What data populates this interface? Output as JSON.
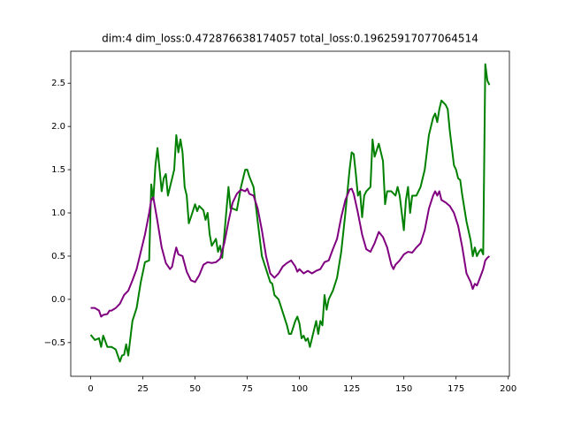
{
  "chart_data": {
    "type": "line",
    "title": "dim:4 dim_loss:0.472876638174057 total_loss:0.19625917077064514",
    "xlim": [
      -9.55,
      200.55
    ],
    "ylim": [
      -0.89,
      2.87
    ],
    "xticks": [
      0,
      25,
      50,
      75,
      100,
      125,
      150,
      175,
      200
    ],
    "yticks": [
      {
        "value": -0.5,
        "label": "−0.5"
      },
      {
        "value": 0,
        "label": "0.0"
      },
      0.5,
      {
        "value": 1,
        "label": "1.0"
      },
      1.5,
      {
        "value": 2,
        "label": "2.0"
      },
      2.5
    ],
    "series": [
      {
        "color": "#008000",
        "x": [
          0,
          2,
          4,
          5,
          6,
          8,
          10,
          12,
          14,
          15,
          16,
          17,
          18,
          20,
          22,
          24,
          26,
          28,
          29,
          30,
          31,
          32,
          34,
          35,
          36,
          37,
          38,
          40,
          41,
          42,
          43,
          44,
          45,
          46,
          47,
          48,
          50,
          51,
          52,
          54,
          55,
          56,
          57,
          58,
          60,
          61,
          62,
          63,
          64,
          66,
          67,
          68,
          70,
          72,
          74,
          75,
          76,
          78,
          80,
          82,
          84,
          86,
          87,
          88,
          90,
          92,
          94,
          95,
          96,
          98,
          99,
          100,
          101,
          102,
          103,
          104,
          105,
          106,
          108,
          109,
          110,
          111,
          112,
          113,
          114,
          116,
          118,
          120,
          122,
          124,
          125,
          126,
          127,
          128,
          129,
          130,
          131,
          132,
          134,
          135,
          136,
          138,
          139,
          140,
          141,
          142,
          144,
          146,
          147,
          148,
          150,
          151,
          152,
          153,
          154,
          156,
          158,
          160,
          162,
          163,
          164,
          165,
          166,
          167,
          168,
          170,
          171,
          172,
          174,
          175,
          176,
          177,
          178,
          180,
          182,
          183,
          184,
          185,
          186,
          187,
          188,
          189,
          190,
          191
        ],
        "values": [
          -0.41,
          -0.47,
          -0.45,
          -0.55,
          -0.42,
          -0.55,
          -0.55,
          -0.58,
          -0.72,
          -0.65,
          -0.64,
          -0.52,
          -0.65,
          -0.25,
          -0.1,
          0.2,
          0.43,
          0.45,
          1.33,
          1.15,
          1.55,
          1.75,
          1.25,
          1.4,
          1.45,
          1.2,
          1.3,
          1.5,
          1.9,
          1.7,
          1.85,
          1.7,
          1.3,
          1.2,
          0.88,
          0.95,
          1.1,
          1.02,
          1.08,
          1.03,
          0.92,
          1.0,
          0.75,
          0.62,
          0.7,
          0.55,
          0.62,
          0.48,
          0.75,
          1.3,
          1.05,
          1.05,
          1.03,
          1.3,
          1.5,
          1.5,
          1.42,
          1.3,
          0.9,
          0.5,
          0.35,
          0.2,
          0.18,
          0.05,
          0.0,
          -0.15,
          -0.3,
          -0.4,
          -0.4,
          -0.25,
          -0.2,
          -0.28,
          -0.45,
          -0.42,
          -0.48,
          -0.45,
          -0.55,
          -0.45,
          -0.25,
          -0.4,
          -0.25,
          -0.3,
          0.05,
          -0.12,
          0.0,
          0.1,
          0.25,
          0.55,
          1.0,
          1.5,
          1.7,
          1.68,
          1.45,
          1.2,
          1.25,
          0.95,
          1.2,
          1.25,
          1.3,
          1.85,
          1.65,
          1.8,
          1.7,
          1.6,
          1.1,
          1.25,
          1.25,
          1.2,
          1.3,
          1.2,
          0.8,
          1.15,
          1.3,
          1.0,
          1.2,
          1.2,
          1.3,
          1.5,
          1.9,
          2.0,
          2.1,
          2.15,
          2.05,
          2.2,
          2.3,
          2.25,
          2.2,
          1.95,
          1.55,
          1.5,
          1.4,
          1.38,
          1.2,
          0.9,
          0.68,
          0.5,
          0.6,
          0.5,
          0.55,
          0.58,
          0.52,
          2.72,
          2.53,
          2.48
        ]
      },
      {
        "color": "#800080",
        "x": [
          0,
          2,
          4,
          5,
          6,
          8,
          9,
          10,
          12,
          14,
          16,
          18,
          20,
          22,
          24,
          26,
          28,
          29,
          30,
          32,
          34,
          36,
          38,
          39,
          40,
          41,
          42,
          44,
          46,
          48,
          50,
          52,
          54,
          56,
          58,
          60,
          62,
          64,
          66,
          68,
          70,
          72,
          74,
          75,
          76,
          78,
          80,
          82,
          84,
          86,
          88,
          90,
          92,
          94,
          96,
          98,
          99,
          100,
          102,
          104,
          106,
          108,
          110,
          112,
          114,
          116,
          118,
          120,
          122,
          124,
          125,
          126,
          128,
          130,
          132,
          134,
          136,
          138,
          140,
          142,
          144,
          145,
          146,
          148,
          150,
          152,
          154,
          156,
          158,
          160,
          162,
          164,
          165,
          166,
          167,
          168,
          170,
          172,
          174,
          176,
          178,
          180,
          182,
          183,
          184,
          185,
          186,
          188,
          189,
          190,
          191
        ],
        "values": [
          -0.1,
          -0.1,
          -0.13,
          -0.2,
          -0.18,
          -0.17,
          -0.13,
          -0.13,
          -0.1,
          -0.05,
          0.05,
          0.1,
          0.22,
          0.35,
          0.55,
          0.75,
          1.0,
          1.15,
          1.18,
          0.9,
          0.6,
          0.42,
          0.35,
          0.38,
          0.5,
          0.6,
          0.52,
          0.5,
          0.32,
          0.22,
          0.2,
          0.28,
          0.4,
          0.43,
          0.42,
          0.43,
          0.47,
          0.65,
          0.9,
          1.12,
          1.22,
          1.27,
          1.25,
          1.28,
          1.22,
          1.2,
          1.05,
          0.8,
          0.5,
          0.3,
          0.25,
          0.3,
          0.38,
          0.42,
          0.45,
          0.38,
          0.32,
          0.35,
          0.3,
          0.33,
          0.3,
          0.33,
          0.35,
          0.43,
          0.45,
          0.58,
          0.7,
          0.95,
          1.15,
          1.27,
          1.28,
          1.22,
          1.0,
          0.75,
          0.58,
          0.55,
          0.65,
          0.78,
          0.72,
          0.6,
          0.4,
          0.35,
          0.4,
          0.45,
          0.52,
          0.55,
          0.54,
          0.6,
          0.65,
          0.8,
          1.05,
          1.2,
          1.25,
          1.2,
          1.25,
          1.15,
          1.12,
          1.08,
          1.0,
          0.85,
          0.6,
          0.3,
          0.2,
          0.12,
          0.18,
          0.16,
          0.22,
          0.35,
          0.45,
          0.48,
          0.5
        ]
      }
    ]
  }
}
